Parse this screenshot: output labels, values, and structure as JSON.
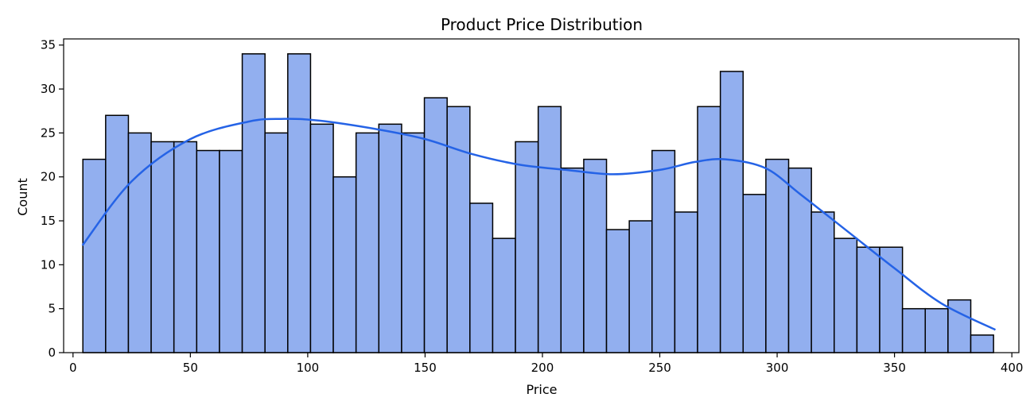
{
  "chart_data": {
    "type": "bar",
    "title": "Product Price Distribution",
    "xlabel": "Price",
    "ylabel": "Count",
    "xlim": [
      -4,
      403
    ],
    "ylim": [
      0,
      35.7
    ],
    "xticks": [
      0,
      50,
      100,
      150,
      200,
      250,
      300,
      350,
      400
    ],
    "yticks": [
      0,
      5,
      10,
      15,
      20,
      25,
      30,
      35
    ],
    "bin_start": 4.2,
    "bin_width": 9.7,
    "counts": [
      22,
      27,
      25,
      24,
      24,
      23,
      23,
      34,
      25,
      34,
      26,
      20,
      25,
      26,
      25,
      29,
      28,
      17,
      13,
      24,
      28,
      21,
      22,
      14,
      15,
      23,
      16,
      28,
      32,
      18,
      22,
      21,
      16,
      13,
      12,
      12,
      5,
      5,
      6,
      2
    ],
    "kde": {
      "x": [
        4,
        25,
        50,
        75,
        90,
        105,
        130,
        150,
        170,
        190,
        210,
        230,
        250,
        265,
        278,
        295,
        310,
        330,
        350,
        370,
        393
      ],
      "y": [
        12.2,
        19.5,
        24.3,
        26.3,
        26.6,
        26.4,
        25.4,
        24.3,
        22.6,
        21.4,
        20.8,
        20.3,
        20.8,
        21.7,
        22.0,
        21.0,
        18.0,
        13.8,
        9.6,
        5.6,
        2.6
      ]
    },
    "grid": false,
    "legend": "none",
    "colors": {
      "bar_fill": "#92afef",
      "bar_edge": "#000000",
      "kde_line": "#2563e6"
    }
  }
}
